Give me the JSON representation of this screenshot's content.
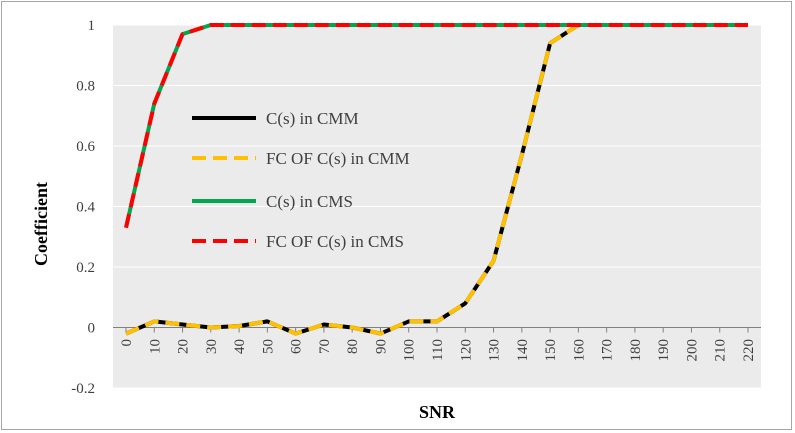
{
  "chart_data": {
    "type": "line",
    "title": "",
    "xlabel": "SNR",
    "ylabel": "Coefficient",
    "x": [
      0,
      10,
      20,
      30,
      40,
      50,
      60,
      70,
      80,
      90,
      100,
      110,
      120,
      130,
      140,
      150,
      160,
      170,
      180,
      190,
      200,
      210,
      220
    ],
    "x_tick_labels": [
      "0",
      "10",
      "20",
      "30",
      "40",
      "50",
      "60",
      "70",
      "80",
      "90",
      "100",
      "110",
      "120",
      "130",
      "140",
      "150",
      "160",
      "170",
      "180",
      "190",
      "200",
      "210",
      "220"
    ],
    "ylim": [
      -0.2,
      1
    ],
    "y_ticks": [
      -0.2,
      0,
      0.2,
      0.4,
      0.6,
      0.8,
      1
    ],
    "y_tick_labels": [
      "-0.2",
      "0",
      "0.2",
      "0.4",
      "0.6",
      "0.8",
      "1"
    ],
    "grid": "horizontal",
    "legend_position": "center-left",
    "series": [
      {
        "name": "C(s) in CMM",
        "color": "#000000",
        "style": "solid",
        "values": [
          -0.02,
          0.02,
          0.01,
          0.0,
          0.005,
          0.02,
          -0.02,
          0.01,
          0.0,
          -0.02,
          0.02,
          0.02,
          0.08,
          0.22,
          0.57,
          0.94,
          1.0,
          1.0,
          1.0,
          1.0,
          1.0,
          1.0,
          1.0
        ]
      },
      {
        "name": "FC OF C(s) in CMM",
        "color": "#ffc000",
        "style": "dashed",
        "values": [
          -0.02,
          0.02,
          0.01,
          0.0,
          0.005,
          0.02,
          -0.02,
          0.01,
          0.0,
          -0.02,
          0.02,
          0.02,
          0.08,
          0.22,
          0.57,
          0.94,
          1.0,
          1.0,
          1.0,
          1.0,
          1.0,
          1.0,
          1.0
        ]
      },
      {
        "name": "C(s) in CMS",
        "color": "#00a650",
        "style": "solid",
        "values": [
          0.33,
          0.74,
          0.97,
          1.0,
          1.0,
          1.0,
          1.0,
          1.0,
          1.0,
          1.0,
          1.0,
          1.0,
          1.0,
          1.0,
          1.0,
          1.0,
          1.0,
          1.0,
          1.0,
          1.0,
          1.0,
          1.0,
          1.0
        ]
      },
      {
        "name": "FC OF C(s) in CMS",
        "color": "#ff0000",
        "style": "dashed",
        "values": [
          0.33,
          0.74,
          0.97,
          1.0,
          1.0,
          1.0,
          1.0,
          1.0,
          1.0,
          1.0,
          1.0,
          1.0,
          1.0,
          1.0,
          1.0,
          1.0,
          1.0,
          1.0,
          1.0,
          1.0,
          1.0,
          1.0,
          1.0
        ]
      }
    ]
  }
}
